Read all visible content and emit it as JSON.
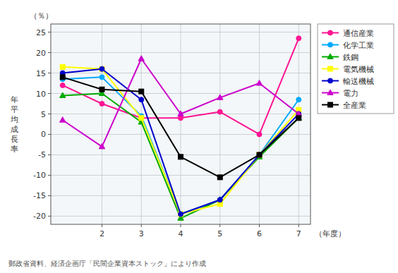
{
  "chart_data": {
    "type": "line",
    "x": [
      1,
      2,
      3,
      4,
      5,
      6,
      7
    ],
    "series": [
      {
        "name": "通信産業",
        "color": "#ff1493",
        "marker": "circle",
        "values": [
          12,
          7.5,
          4,
          4,
          5.5,
          0,
          23.5
        ]
      },
      {
        "name": "化学工業",
        "color": "#00aaff",
        "marker": "circle",
        "values": [
          13.5,
          14,
          4.5,
          -19.5,
          -16,
          -5,
          8.5
        ]
      },
      {
        "name": "鉄鋼",
        "color": "#00aa00",
        "marker": "triangle",
        "values": [
          9.5,
          10,
          3,
          -20.5,
          -16,
          -5.5,
          4
        ]
      },
      {
        "name": "電気機械",
        "color": "#ffff00",
        "marker": "square",
        "values": [
          16.5,
          16,
          4,
          -19.5,
          -17,
          -5,
          6
        ]
      },
      {
        "name": "輸送機械",
        "color": "#0000cc",
        "marker": "circle",
        "values": [
          15,
          16,
          8.5,
          -19.5,
          -16,
          -5,
          5
        ]
      },
      {
        "name": "電力",
        "color": "#cc00cc",
        "marker": "triangle",
        "values": [
          3.5,
          -3,
          18.5,
          5,
          9,
          12.5,
          5
        ]
      },
      {
        "name": "全産業",
        "color": "#000000",
        "marker": "square",
        "values": [
          14,
          11,
          10.5,
          -5.5,
          -10.5,
          -5,
          4
        ]
      }
    ],
    "xlim": [
      0.7,
      7.3
    ],
    "ylim": [
      -22,
      27
    ],
    "xticks": [
      2,
      3,
      4,
      5,
      6,
      7
    ],
    "yticks": [
      -20,
      -15,
      -10,
      -5,
      0,
      5,
      10,
      15,
      20,
      25
    ],
    "xlabel": "（年度）",
    "ylabel": "年\n平\n均\n成\n長\n率",
    "annotations": [
      "（％）",
      "郵政省資料、経済企画庁「民間企業資本ストック」により作成"
    ],
    "grid": true,
    "legend": "right"
  }
}
